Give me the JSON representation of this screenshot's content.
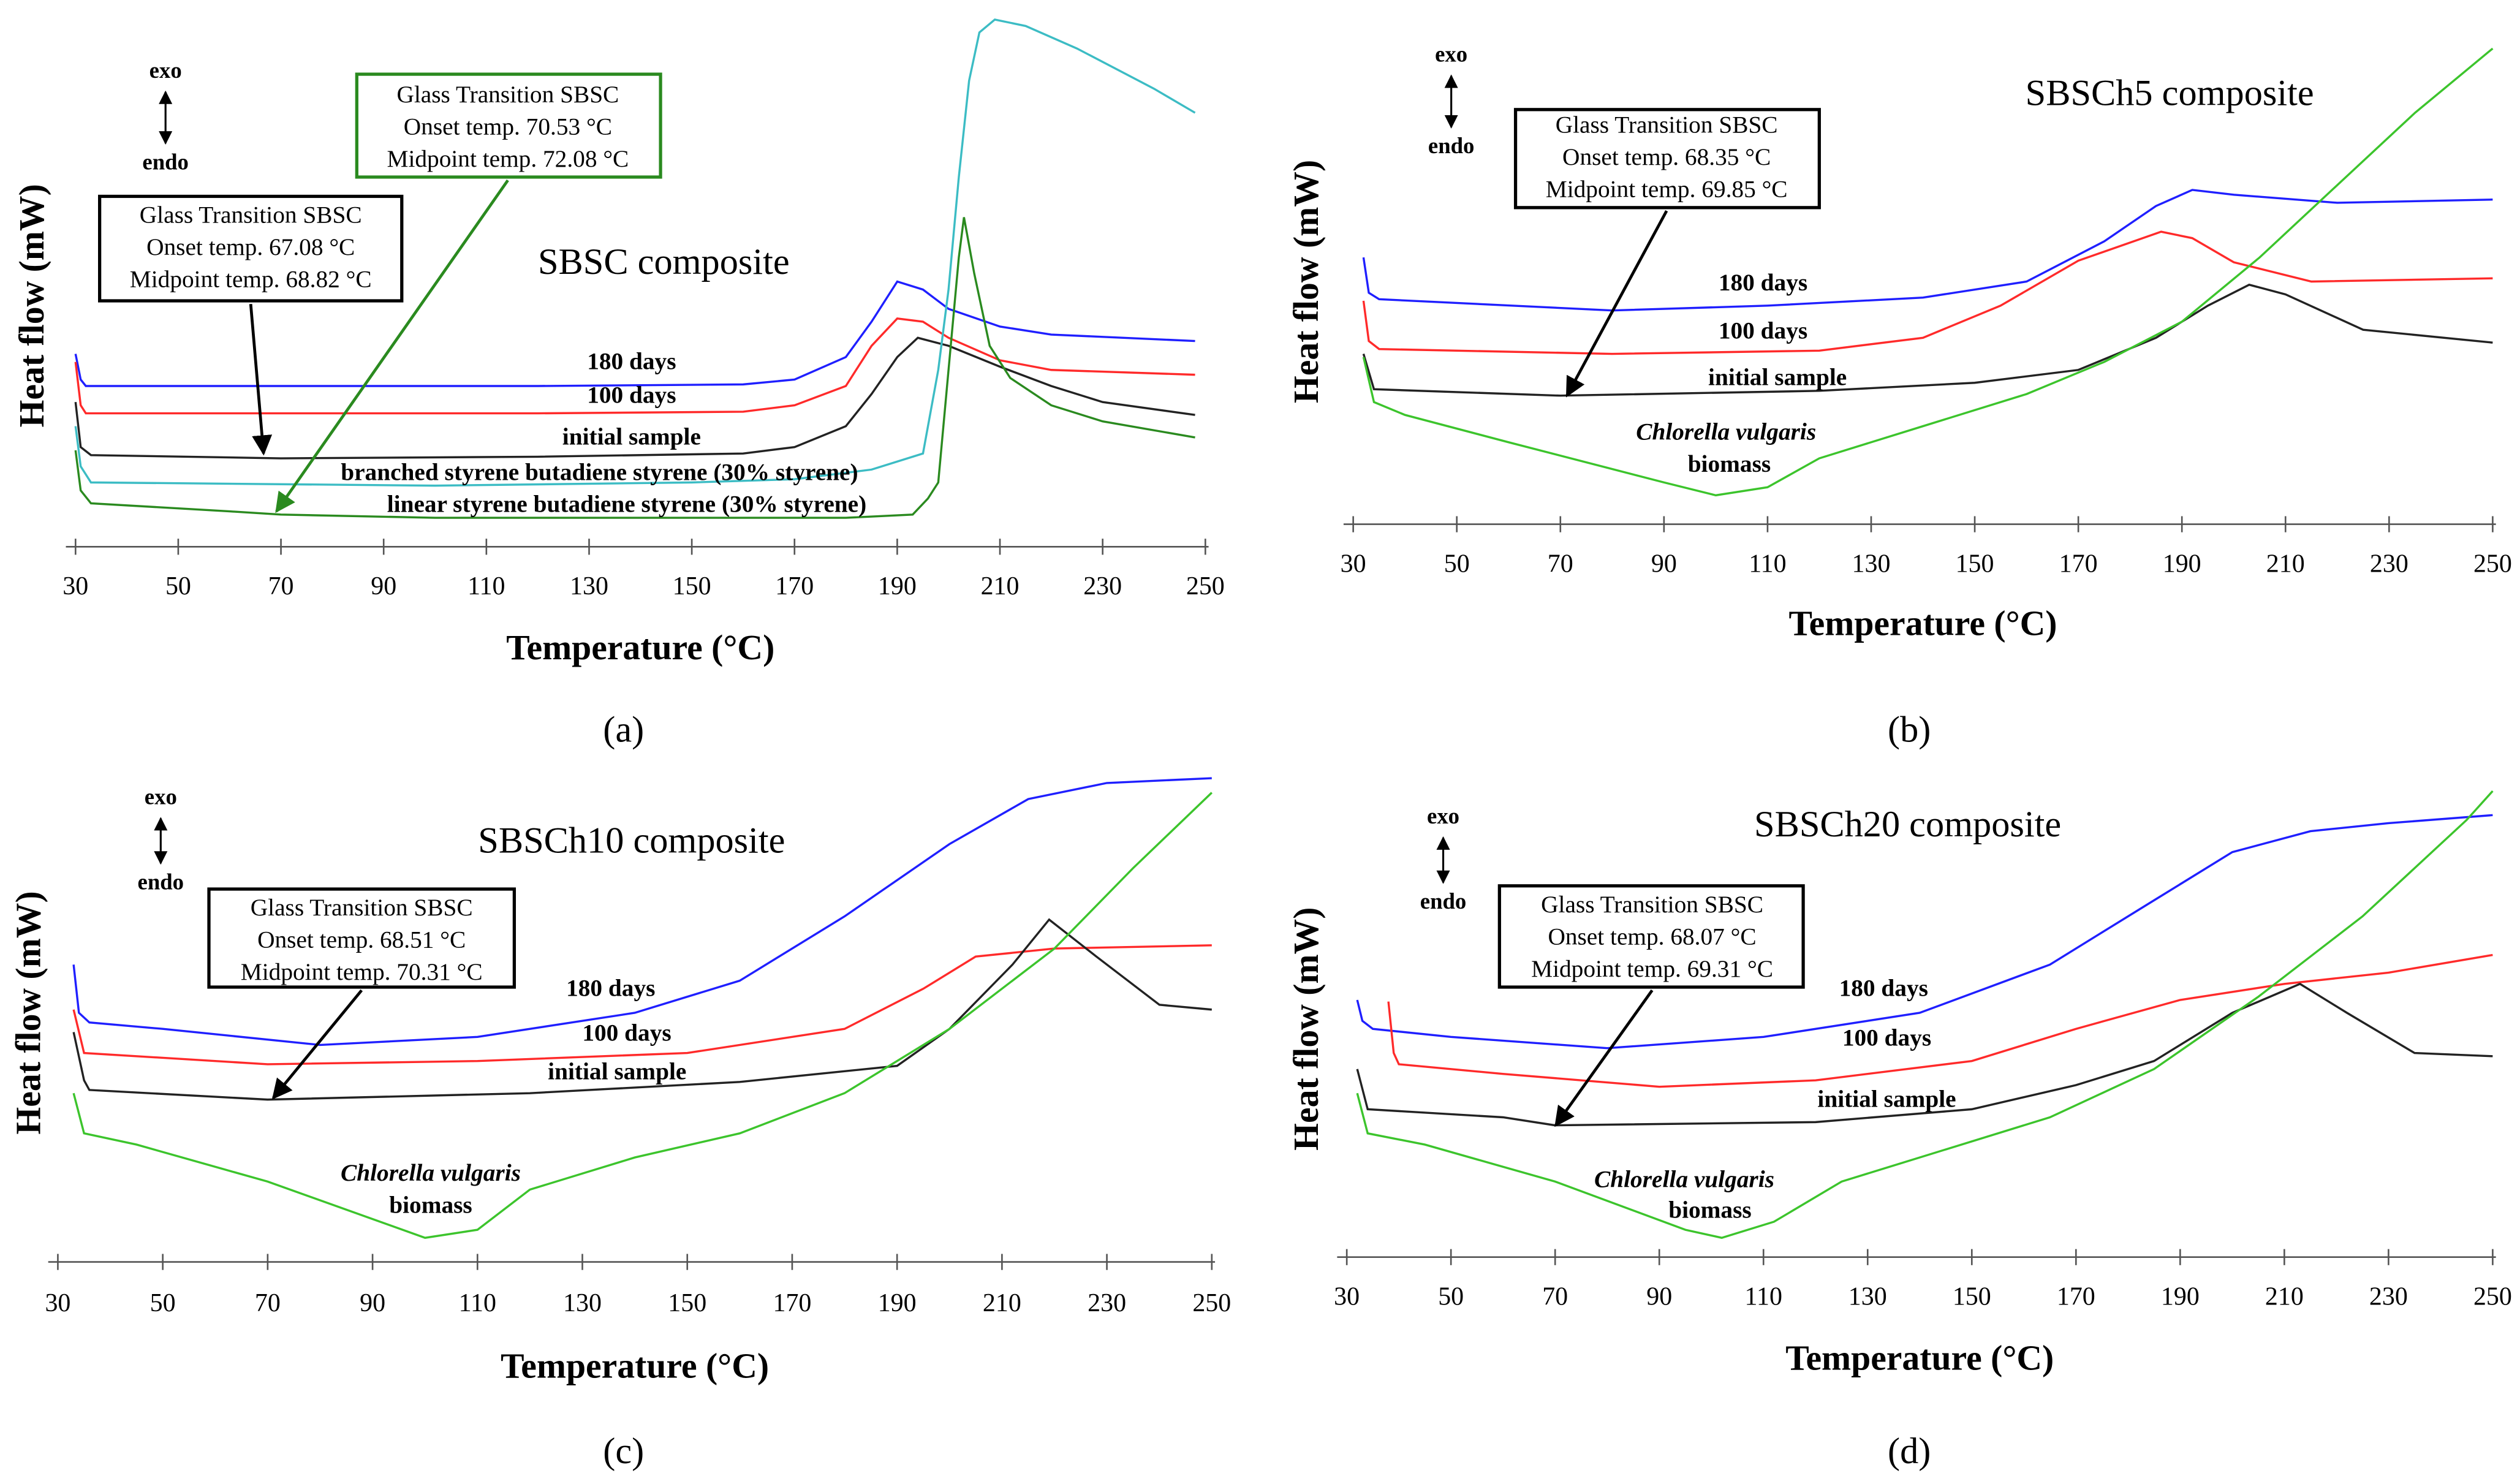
{
  "chart_data": [
    {
      "type": "line",
      "title": "SBSC composite",
      "panel": "(a)",
      "xlabel": "Temperature (°C)",
      "ylabel": "Heat flow (mW)",
      "exo": "exo",
      "endo": "endo",
      "xlim": [
        30,
        250
      ],
      "xticks": [
        30,
        50,
        70,
        90,
        110,
        130,
        150,
        170,
        190,
        210,
        230,
        250
      ],
      "ylim": [
        0,
        330
      ],
      "annotations": [
        {
          "lines": [
            "Glass Transition SBSC",
            "Onset temp. 67.08 °C",
            "Midpoint temp. 68.82 °C"
          ],
          "color": "#000000"
        },
        {
          "lines": [
            "Glass Transition SBSC",
            "Onset temp. 70.53 °C",
            "Midpoint temp. 72.08 °C"
          ],
          "color": "#2a8a1f"
        }
      ],
      "series": [
        {
          "label": [
            "180 days"
          ],
          "color": "#1f1fff",
          "x": [
            30,
            31,
            32,
            40,
            80,
            120,
            160,
            170,
            180,
            185,
            190,
            195,
            200,
            210,
            220,
            248
          ],
          "values": [
            120,
            104,
            100,
            100,
            100,
            100,
            101,
            104,
            118,
            140,
            165,
            160,
            148,
            137,
            132,
            128
          ]
        },
        {
          "label": [
            "100 days"
          ],
          "color": "#ff2a2a",
          "x": [
            30,
            31,
            32,
            80,
            120,
            160,
            170,
            180,
            185,
            190,
            195,
            200,
            210,
            220,
            248
          ],
          "values": [
            115,
            88,
            83,
            83,
            83,
            84,
            88,
            100,
            125,
            142,
            140,
            130,
            116,
            110,
            107
          ]
        },
        {
          "label": [
            "initial sample"
          ],
          "color": "#222222",
          "x": [
            30,
            31,
            33,
            70,
            120,
            160,
            170,
            180,
            185,
            190,
            194,
            200,
            210,
            220,
            230,
            248
          ],
          "values": [
            90,
            62,
            57,
            55,
            56,
            58,
            62,
            75,
            95,
            118,
            130,
            125,
            112,
            100,
            90,
            82
          ]
        },
        {
          "label": [
            "branched styrene butadiene styrene (30% styrene)"
          ],
          "color": "#3cbcc4",
          "x": [
            30,
            31,
            33,
            100,
            150,
            170,
            185,
            195,
            198,
            200,
            202,
            204,
            206,
            209,
            215,
            225,
            240,
            248
          ],
          "values": [
            75,
            50,
            40,
            38,
            40,
            42,
            48,
            58,
            110,
            160,
            230,
            290,
            320,
            328,
            324,
            310,
            285,
            270
          ]
        },
        {
          "label": [
            "linear styrene butadiene styrene (30% styrene)"
          ],
          "color": "#2a8a1f",
          "x": [
            30,
            31,
            33,
            60,
            70,
            100,
            150,
            180,
            193,
            196,
            198,
            200,
            202,
            203,
            205,
            208,
            212,
            220,
            230,
            248
          ],
          "values": [
            60,
            35,
            27,
            22,
            20,
            18,
            18,
            18,
            20,
            30,
            40,
            110,
            180,
            205,
            170,
            125,
            105,
            88,
            78,
            68
          ]
        }
      ]
    },
    {
      "type": "line",
      "title": "SBSCh5 composite",
      "panel": "(b)",
      "xlabel": "Temperature (°C)",
      "ylabel": "Heat flow (mW)",
      "exo": "exo",
      "endo": "endo",
      "xlim": [
        30,
        250
      ],
      "xticks": [
        30,
        50,
        70,
        90,
        110,
        130,
        150,
        170,
        190,
        210,
        230,
        250
      ],
      "ylim": [
        0,
        316
      ],
      "annotations": [
        {
          "lines": [
            "Glass Transition SBSC",
            "Onset temp. 68.35 °C",
            "Midpoint temp. 69.85 °C"
          ],
          "color": "#000000"
        }
      ],
      "series": [
        {
          "label": [
            "180 days"
          ],
          "color": "#1f1fff",
          "x": [
            32,
            33,
            35,
            80,
            110,
            140,
            160,
            175,
            185,
            192,
            200,
            220,
            250
          ],
          "values": [
            166,
            144,
            140,
            133,
            136,
            141,
            151,
            176,
            198,
            208,
            205,
            200,
            202
          ]
        },
        {
          "label": [
            "100 days"
          ],
          "color": "#ff2a2a",
          "x": [
            32,
            33,
            35,
            80,
            120,
            140,
            155,
            170,
            186,
            192,
            200,
            215,
            250
          ],
          "values": [
            139,
            114,
            109,
            106,
            108,
            116,
            136,
            164,
            182,
            178,
            163,
            151,
            153
          ]
        },
        {
          "label": [
            "initial sample"
          ],
          "color": "#222222",
          "x": [
            32,
            34,
            70,
            120,
            150,
            170,
            185,
            195,
            203,
            210,
            225,
            250
          ],
          "values": [
            106,
            84,
            80,
            83,
            88,
            96,
            116,
            136,
            149,
            143,
            121,
            113
          ]
        },
        {
          "label": [
            "Chlorella vulgaris",
            "biomass"
          ],
          "color": "#3cc42c",
          "x": [
            32,
            34,
            40,
            60,
            90,
            100,
            110,
            120,
            140,
            160,
            175,
            190,
            205,
            220,
            235,
            250
          ],
          "values": [
            104,
            76,
            68,
            51,
            26,
            18,
            23,
            41,
            61,
            81,
            101,
            126,
            166,
            211,
            256,
            296
          ]
        }
      ]
    },
    {
      "type": "line",
      "title": "SBSCh10 composite",
      "panel": "(c)",
      "xlabel": "Temperature (°C)",
      "ylabel": "Heat flow (mW)",
      "exo": "exo",
      "endo": "endo",
      "xlim": [
        30,
        250
      ],
      "xticks": [
        30,
        50,
        70,
        90,
        110,
        130,
        150,
        170,
        190,
        210,
        230,
        250
      ],
      "ylim": [
        0,
        305
      ],
      "annotations": [
        {
          "lines": [
            "Glass Transition SBSC",
            "Onset temp. 68.51 °C",
            "Midpoint temp. 70.31 °C"
          ],
          "color": "#000000"
        }
      ],
      "series": [
        {
          "label": [
            "180 days"
          ],
          "color": "#1f1fff",
          "x": [
            33,
            34,
            36,
            50,
            80,
            110,
            140,
            160,
            180,
            200,
            215,
            230,
            250
          ],
          "values": [
            185,
            155,
            149,
            145,
            135,
            140,
            155,
            175,
            215,
            260,
            288,
            298,
            301
          ]
        },
        {
          "label": [
            "100 days"
          ],
          "color": "#ff2a2a",
          "x": [
            33,
            35,
            70,
            110,
            150,
            180,
            195,
            205,
            220,
            250
          ],
          "values": [
            157,
            130,
            123,
            125,
            130,
            145,
            170,
            190,
            195,
            197
          ]
        },
        {
          "label": [
            "initial sample"
          ],
          "color": "#222222",
          "x": [
            33,
            35,
            36,
            70,
            120,
            160,
            190,
            200,
            212,
            219,
            228,
            240,
            250
          ],
          "values": [
            143,
            113,
            107,
            101,
            105,
            112,
            122,
            145,
            185,
            213,
            190,
            160,
            157
          ]
        },
        {
          "label": [
            "Chlorella vulgaris",
            "biomass"
          ],
          "color": "#3cc42c",
          "x": [
            33,
            35,
            45,
            70,
            100,
            110,
            120,
            140,
            160,
            180,
            200,
            220,
            235,
            250
          ],
          "values": [
            105,
            80,
            73,
            50,
            15,
            20,
            45,
            65,
            80,
            105,
            145,
            195,
            245,
            292
          ]
        }
      ]
    },
    {
      "type": "line",
      "title": "SBSCh20 composite",
      "panel": "(d)",
      "xlabel": "Temperature (°C)",
      "ylabel": "Heat flow (mW)",
      "exo": "exo",
      "endo": "endo",
      "xlim": [
        30,
        250
      ],
      "xticks": [
        30,
        50,
        70,
        90,
        110,
        130,
        150,
        170,
        190,
        210,
        230,
        250
      ],
      "ylim": [
        0,
        302
      ],
      "annotations": [
        {
          "lines": [
            "Glass Transition SBSC",
            "Onset temp. 68.07 °C",
            "Midpoint temp. 69.31 °C"
          ],
          "color": "#000000"
        }
      ],
      "series": [
        {
          "label": [
            "180 days"
          ],
          "color": "#1f1fff",
          "x": [
            32,
            33,
            35,
            50,
            80,
            110,
            140,
            165,
            185,
            200,
            215,
            230,
            250
          ],
          "values": [
            160,
            147,
            142,
            137,
            130,
            137,
            152,
            182,
            222,
            252,
            265,
            270,
            275
          ]
        },
        {
          "label": [
            "100 days"
          ],
          "color": "#ff2a2a",
          "x": [
            38,
            39,
            40,
            60,
            90,
            120,
            150,
            170,
            190,
            210,
            230,
            250
          ],
          "values": [
            159,
            127,
            120,
            114,
            106,
            110,
            122,
            142,
            160,
            170,
            177,
            188
          ]
        },
        {
          "label": [
            "initial sample"
          ],
          "color": "#222222",
          "x": [
            32,
            34,
            60,
            70,
            120,
            150,
            170,
            185,
            200,
            213,
            222,
            235,
            250
          ],
          "values": [
            117,
            92,
            87,
            82,
            84,
            92,
            107,
            122,
            152,
            170,
            152,
            127,
            125
          ]
        },
        {
          "label": [
            "Chlorella vulgaris",
            "biomass"
          ],
          "color": "#3cc42c",
          "x": [
            32,
            34,
            45,
            70,
            95,
            102,
            112,
            125,
            145,
            165,
            185,
            205,
            225,
            245,
            250
          ],
          "values": [
            102,
            77,
            70,
            47,
            17,
            12,
            22,
            47,
            67,
            87,
            117,
            162,
            212,
            272,
            290
          ]
        }
      ]
    }
  ]
}
